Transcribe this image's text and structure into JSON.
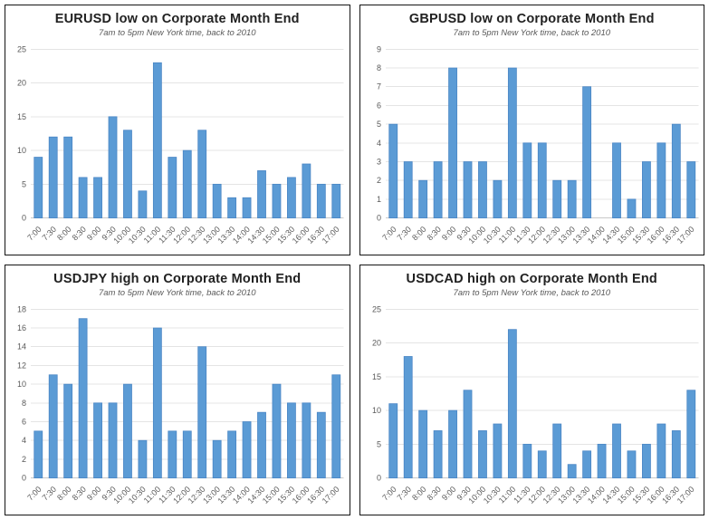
{
  "style": {
    "bar_fill": "#5B9BD5",
    "bar_stroke": "#4A86C5",
    "grid_color": "#E4E4E4",
    "axis_color": "#C8C8C8",
    "tick_color": "#595959",
    "title_color": "#212121",
    "subtitle_color": "#595959",
    "panel_border": "#141414",
    "background": "#FFFFFF"
  },
  "chart_data": [
    {
      "type": "bar",
      "title": "EURUSD low on Corporate Month End",
      "subtitle": "7am to 5pm New York time, back to 2010",
      "categories": [
        "7:00",
        "7:30",
        "8:00",
        "8:30",
        "9:00",
        "9:30",
        "10:00",
        "10:30",
        "11:00",
        "11:30",
        "12:00",
        "12:30",
        "13:00",
        "13:30",
        "14:00",
        "14:30",
        "15:00",
        "15:30",
        "16:00",
        "16:30",
        "17:00"
      ],
      "values": [
        9,
        12,
        12,
        6,
        6,
        15,
        13,
        4,
        23,
        9,
        10,
        13,
        5,
        3,
        3,
        7,
        5,
        6,
        8,
        5,
        5
      ],
      "xlabel": "",
      "ylabel": "",
      "ylim": [
        0,
        25
      ],
      "ytick_step": 5,
      "grid": true,
      "legend": "none"
    },
    {
      "type": "bar",
      "title": "GBPUSD low on Corporate Month End",
      "subtitle": "7am to 5pm New York time, back to 2010",
      "categories": [
        "7:00",
        "7:30",
        "8:00",
        "8:30",
        "9:00",
        "9:30",
        "10:00",
        "10:30",
        "11:00",
        "11:30",
        "12:00",
        "12:30",
        "13:00",
        "13:30",
        "14:00",
        "14:30",
        "15:00",
        "15:30",
        "16:00",
        "16:30",
        "17:00"
      ],
      "values": [
        5,
        3,
        2,
        3,
        8,
        3,
        3,
        2,
        8,
        4,
        4,
        2,
        2,
        7,
        0,
        4,
        1,
        3,
        4,
        5,
        3
      ],
      "xlabel": "",
      "ylabel": "",
      "ylim": [
        0,
        9
      ],
      "ytick_step": 1,
      "grid": true,
      "legend": "none"
    },
    {
      "type": "bar",
      "title": "USDJPY high on Corporate Month End",
      "subtitle": "7am to 5pm New York time, back to 2010",
      "categories": [
        "7:00",
        "7:30",
        "8:00",
        "8:30",
        "9:00",
        "9:30",
        "10:00",
        "10:30",
        "11:00",
        "11:30",
        "12:00",
        "12:30",
        "13:00",
        "13:30",
        "14:00",
        "14:30",
        "15:00",
        "15:30",
        "16:00",
        "16:30",
        "17:00"
      ],
      "values": [
        5,
        11,
        10,
        17,
        8,
        8,
        10,
        4,
        16,
        5,
        5,
        14,
        4,
        5,
        6,
        7,
        10,
        8,
        8,
        7,
        11
      ],
      "xlabel": "",
      "ylabel": "",
      "ylim": [
        0,
        18
      ],
      "ytick_step": 2,
      "grid": true,
      "legend": "none"
    },
    {
      "type": "bar",
      "title": "USDCAD high on Corporate Month End",
      "subtitle": "7am to 5pm New York time, back to 2010",
      "categories": [
        "7:00",
        "7:30",
        "8:00",
        "8:30",
        "9:00",
        "9:30",
        "10:00",
        "10:30",
        "11:00",
        "11:30",
        "12:00",
        "12:30",
        "13:00",
        "13:30",
        "14:00",
        "14:30",
        "15:00",
        "15:30",
        "16:00",
        "16:30",
        "17:00"
      ],
      "values": [
        11,
        18,
        10,
        7,
        10,
        13,
        7,
        8,
        22,
        5,
        4,
        8,
        2,
        4,
        5,
        8,
        4,
        5,
        8,
        7,
        13
      ],
      "xlabel": "",
      "ylabel": "",
      "ylim": [
        0,
        25
      ],
      "ytick_step": 5,
      "grid": true,
      "legend": "none"
    }
  ]
}
